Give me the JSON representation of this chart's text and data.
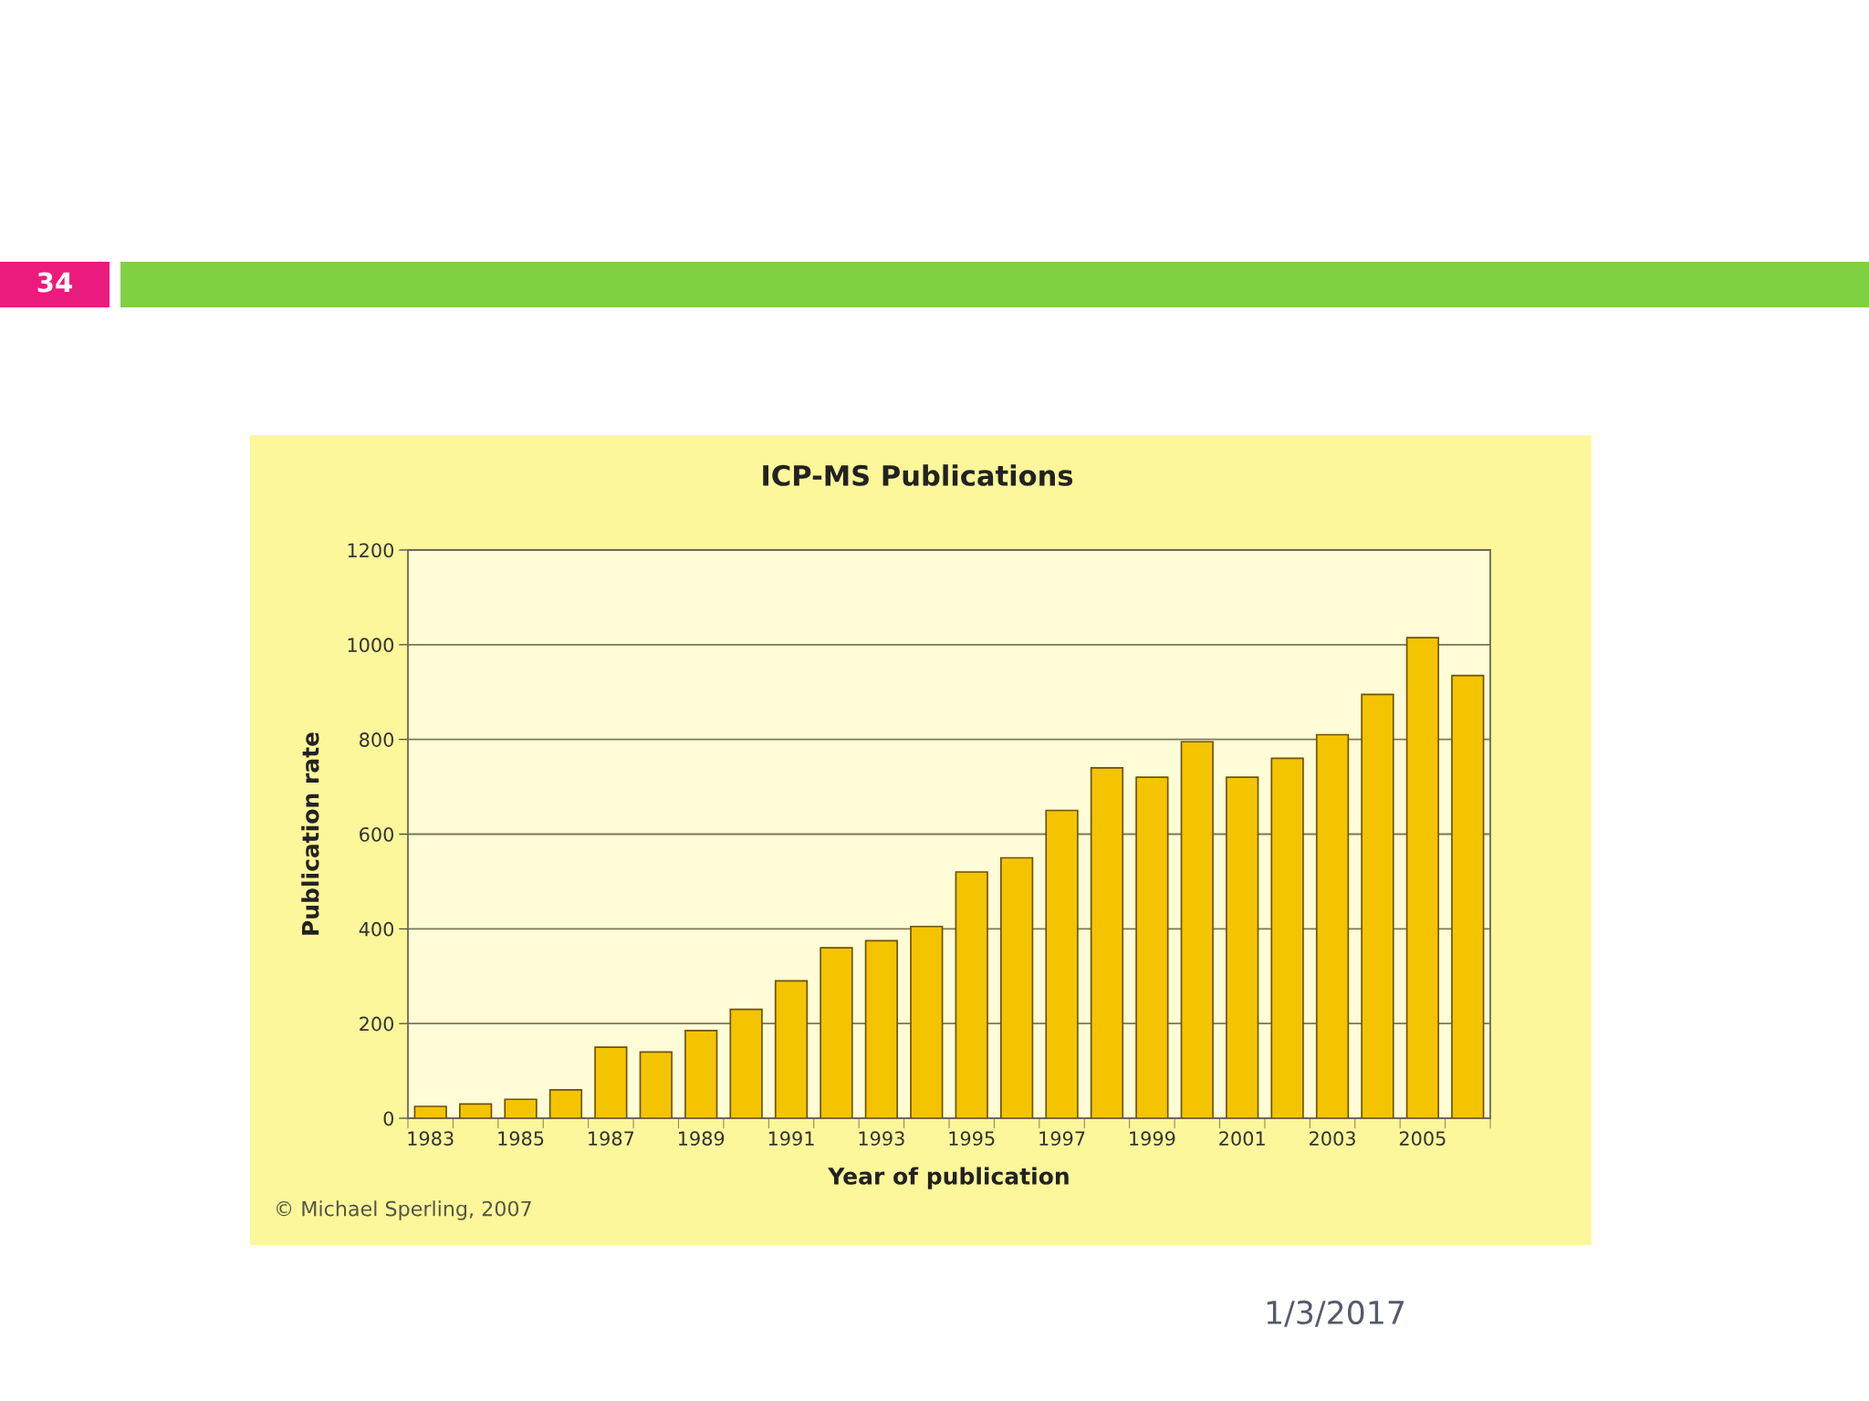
{
  "chart_data": {
    "type": "bar",
    "title": "ICP-MS Publications",
    "xlabel": "Year of publication",
    "ylabel": "Publication rate",
    "categories": [
      "1983",
      null,
      "1985",
      null,
      "1987",
      null,
      "1989",
      null,
      "1991",
      null,
      "1993",
      null,
      "1995",
      null,
      "1997",
      null,
      "1999",
      null,
      "2001",
      null,
      "2003",
      null,
      "2005",
      null
    ],
    "values": [
      25,
      30,
      40,
      60,
      150,
      140,
      185,
      230,
      290,
      360,
      375,
      405,
      520,
      550,
      650,
      740,
      720,
      795,
      720,
      760,
      810,
      895,
      1015,
      935
    ],
    "color": "#f5c400",
    "ylim": [
      0,
      1200
    ],
    "yticks": [
      0,
      200,
      400,
      600,
      800,
      1000,
      1200
    ],
    "grid": "y",
    "annotations": [
      "© Michael Sperling, 2007",
      "34",
      "1/3/2017"
    ]
  }
}
